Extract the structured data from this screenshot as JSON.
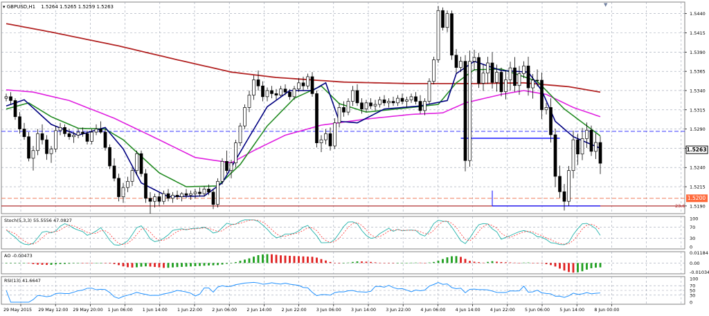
{
  "window": {
    "title": "GBPUSD,H1"
  },
  "chart_data": [
    {
      "type": "candlestick",
      "panel": "main",
      "symbol": "GBPUSD",
      "timeframe": "H1",
      "header": {
        "symbol_label": "GBPUSD,H1",
        "quote": "1.5264 1.5265 1.5259 1.5263"
      },
      "ylim": [
        1.518,
        1.5455
      ],
      "yticks": [
        "1.5440",
        "1.5415",
        "1.5390",
        "1.5365",
        "1.5340",
        "1.5315",
        "1.5290",
        "1.5265",
        "1.5240",
        "1.5215",
        "1.5190"
      ],
      "current_price_label": "1.5263",
      "current_price": 1.5263,
      "price_badge": "1.5200",
      "price_badge_value": 1.52,
      "level_text": "23.6",
      "level_value": 1.519,
      "xticks": [
        "29 May 2015",
        "29 May 12:00",
        "29 May 20:00",
        "1 Jun 06:00",
        "1 Jun 14:00",
        "1 Jun 22:00",
        "2 Jun 06:00",
        "2 Jun 14:00",
        "2 Jun 22:00",
        "3 Jun 06:00",
        "3 Jun 14:00",
        "3 Jun 22:00",
        "4 Jun 06:00",
        "4 Jun 14:00",
        "4 Jun 22:00",
        "5 Jun 06:00",
        "5 Jun 14:00",
        "8 Jun 00:00"
      ],
      "horizontal_levels": [
        {
          "value": 1.5287,
          "color": "#1a1aff",
          "style": "dashed"
        },
        {
          "value": 1.5278,
          "color": "#0000ff",
          "style": "solid",
          "from_bar": 101,
          "to_bar": 123
        },
        {
          "value": 1.52,
          "color": "#f08060",
          "style": "dashed"
        },
        {
          "value": 1.519,
          "color": "#b03030",
          "style": "solid"
        },
        {
          "value": 1.519,
          "color": "#0000ff",
          "style": "solid",
          "from_bar": 108,
          "to_bar": 132
        }
      ],
      "candles_ohlc": [
        [
          1.533,
          1.5336,
          1.5326,
          1.5332
        ],
        [
          1.5332,
          1.5338,
          1.5322,
          1.5327
        ],
        [
          1.5327,
          1.533,
          1.5302,
          1.5306
        ],
        [
          1.5306,
          1.5312,
          1.5284,
          1.529
        ],
        [
          1.529,
          1.5298,
          1.5276,
          1.528
        ],
        [
          1.528,
          1.5286,
          1.5248,
          1.5252
        ],
        [
          1.5252,
          1.5268,
          1.5236,
          1.5262
        ],
        [
          1.5262,
          1.529,
          1.5256,
          1.5284
        ],
        [
          1.5284,
          1.5296,
          1.527,
          1.5276
        ],
        [
          1.5276,
          1.5282,
          1.525,
          1.5258
        ],
        [
          1.5258,
          1.5268,
          1.5246,
          1.5264
        ],
        [
          1.5264,
          1.5294,
          1.526,
          1.5288
        ],
        [
          1.5288,
          1.5298,
          1.5282,
          1.5292
        ],
        [
          1.5292,
          1.5296,
          1.528,
          1.5284
        ],
        [
          1.5284,
          1.529,
          1.5276,
          1.528
        ],
        [
          1.528,
          1.5286,
          1.5272,
          1.5282
        ],
        [
          1.5282,
          1.529,
          1.5278,
          1.5286
        ],
        [
          1.5286,
          1.5292,
          1.528,
          1.5284
        ],
        [
          1.5284,
          1.5288,
          1.527,
          1.5274
        ],
        [
          1.5274,
          1.529,
          1.527,
          1.5286
        ],
        [
          1.5286,
          1.5296,
          1.5282,
          1.529
        ],
        [
          1.529,
          1.53,
          1.5284,
          1.5286
        ],
        [
          1.5286,
          1.529,
          1.5262,
          1.5266
        ],
        [
          1.5266,
          1.527,
          1.5238,
          1.5242
        ],
        [
          1.5242,
          1.5252,
          1.5222,
          1.5226
        ],
        [
          1.5226,
          1.5232,
          1.5196,
          1.5202
        ],
        [
          1.5202,
          1.522,
          1.5194,
          1.5214
        ],
        [
          1.5214,
          1.5228,
          1.5208,
          1.5222
        ],
        [
          1.5222,
          1.524,
          1.5216,
          1.5236
        ],
        [
          1.5236,
          1.5262,
          1.523,
          1.5258
        ],
        [
          1.5258,
          1.5262,
          1.5228,
          1.5232
        ],
        [
          1.5232,
          1.5238,
          1.5194,
          1.52
        ],
        [
          1.52,
          1.5208,
          1.518,
          1.5196
        ],
        [
          1.5196,
          1.5206,
          1.5188,
          1.5202
        ],
        [
          1.5202,
          1.5208,
          1.519,
          1.5196
        ],
        [
          1.5196,
          1.521,
          1.5192,
          1.5206
        ],
        [
          1.5206,
          1.5212,
          1.5196,
          1.52
        ],
        [
          1.52,
          1.5208,
          1.5194,
          1.5204
        ],
        [
          1.5204,
          1.521,
          1.5198,
          1.5202
        ],
        [
          1.5202,
          1.5208,
          1.5196,
          1.5206
        ],
        [
          1.5206,
          1.5212,
          1.52,
          1.5204
        ],
        [
          1.5204,
          1.521,
          1.5198,
          1.5206
        ],
        [
          1.5206,
          1.5212,
          1.52,
          1.5208
        ],
        [
          1.5208,
          1.5214,
          1.5202,
          1.5206
        ],
        [
          1.5206,
          1.5216,
          1.5202,
          1.5212
        ],
        [
          1.5212,
          1.5218,
          1.5204,
          1.5208
        ],
        [
          1.5208,
          1.5212,
          1.5186,
          1.5192
        ],
        [
          1.5192,
          1.5226,
          1.5188,
          1.5222
        ],
        [
          1.5222,
          1.5252,
          1.5218,
          1.5248
        ],
        [
          1.5248,
          1.5262,
          1.5232,
          1.5236
        ],
        [
          1.5236,
          1.525,
          1.5226,
          1.5246
        ],
        [
          1.5246,
          1.5276,
          1.524,
          1.5272
        ],
        [
          1.5272,
          1.5298,
          1.5268,
          1.5294
        ],
        [
          1.5294,
          1.5322,
          1.529,
          1.5318
        ],
        [
          1.5318,
          1.534,
          1.5312,
          1.5334
        ],
        [
          1.5334,
          1.536,
          1.5328,
          1.5354
        ],
        [
          1.5354,
          1.5366,
          1.534,
          1.5346
        ],
        [
          1.5346,
          1.5352,
          1.5326,
          1.5332
        ],
        [
          1.5332,
          1.5344,
          1.5326,
          1.534
        ],
        [
          1.534,
          1.5346,
          1.533,
          1.5336
        ],
        [
          1.5336,
          1.5342,
          1.5328,
          1.5334
        ],
        [
          1.5334,
          1.5346,
          1.5332,
          1.5342
        ],
        [
          1.5342,
          1.5348,
          1.5334,
          1.5338
        ],
        [
          1.5338,
          1.5342,
          1.5328,
          1.5332
        ],
        [
          1.5332,
          1.5346,
          1.5328,
          1.5342
        ],
        [
          1.5342,
          1.5356,
          1.5338,
          1.535
        ],
        [
          1.535,
          1.5358,
          1.534,
          1.5346
        ],
        [
          1.5346,
          1.5362,
          1.5342,
          1.5358
        ],
        [
          1.5358,
          1.5364,
          1.5332,
          1.5336
        ],
        [
          1.5336,
          1.534,
          1.5266,
          1.5272
        ],
        [
          1.5272,
          1.5282,
          1.526,
          1.5276
        ],
        [
          1.5276,
          1.529,
          1.527,
          1.5284
        ],
        [
          1.5284,
          1.5292,
          1.5262,
          1.5268
        ],
        [
          1.5268,
          1.5304,
          1.5264,
          1.5298
        ],
        [
          1.5298,
          1.5324,
          1.5292,
          1.5318
        ],
        [
          1.5318,
          1.5326,
          1.5306,
          1.5312
        ],
        [
          1.5312,
          1.533,
          1.5308,
          1.5326
        ],
        [
          1.5326,
          1.5346,
          1.532,
          1.534
        ],
        [
          1.534,
          1.5348,
          1.532,
          1.5324
        ],
        [
          1.5324,
          1.533,
          1.531,
          1.5316
        ],
        [
          1.5316,
          1.5328,
          1.5312,
          1.5324
        ],
        [
          1.5324,
          1.533,
          1.5316,
          1.532
        ],
        [
          1.532,
          1.5328,
          1.5314,
          1.5322
        ],
        [
          1.5322,
          1.5332,
          1.5318,
          1.5328
        ],
        [
          1.5328,
          1.5334,
          1.532,
          1.5324
        ],
        [
          1.5324,
          1.533,
          1.5318,
          1.5326
        ],
        [
          1.5326,
          1.5332,
          1.532,
          1.5324
        ],
        [
          1.5324,
          1.5334,
          1.532,
          1.533
        ],
        [
          1.533,
          1.5336,
          1.5322,
          1.5326
        ],
        [
          1.5326,
          1.5332,
          1.5318,
          1.5328
        ],
        [
          1.5328,
          1.5336,
          1.5324,
          1.5332
        ],
        [
          1.5332,
          1.5338,
          1.5322,
          1.5326
        ],
        [
          1.5326,
          1.5334,
          1.531,
          1.5314
        ],
        [
          1.5314,
          1.533,
          1.5308,
          1.5326
        ],
        [
          1.5326,
          1.5356,
          1.5322,
          1.5352
        ],
        [
          1.5352,
          1.5384,
          1.5348,
          1.538
        ],
        [
          1.538,
          1.545,
          1.5376,
          1.5444
        ],
        [
          1.5444,
          1.5448,
          1.5418,
          1.5422
        ],
        [
          1.5422,
          1.5444,
          1.5416,
          1.544
        ],
        [
          1.544,
          1.5444,
          1.538,
          1.5386
        ],
        [
          1.5386,
          1.5394,
          1.5362,
          1.537
        ],
        [
          1.537,
          1.5384,
          1.5364,
          1.5378
        ]
      ],
      "series": [
        {
          "name": "ma_red",
          "color": "#b22222",
          "anchors": [
            [
              0,
              1.5427
            ],
            [
              10,
              1.5416
            ],
            [
              25,
              1.5398
            ],
            [
              38,
              1.538
            ],
            [
              50,
              1.5364
            ],
            [
              60,
              1.5357
            ],
            [
              75,
              1.5351
            ],
            [
              90,
              1.5349
            ],
            [
              104,
              1.5349
            ],
            [
              115,
              1.535
            ],
            [
              125,
              1.5345
            ],
            [
              132,
              1.5338
            ]
          ]
        },
        {
          "name": "ma_magenta",
          "color": "#e020e0",
          "anchors": [
            [
              0,
              1.5341
            ],
            [
              6,
              1.5338
            ],
            [
              14,
              1.5327
            ],
            [
              24,
              1.5304
            ],
            [
              34,
              1.5276
            ],
            [
              42,
              1.5253
            ],
            [
              50,
              1.5246
            ],
            [
              55,
              1.5262
            ],
            [
              62,
              1.5282
            ],
            [
              70,
              1.5295
            ],
            [
              80,
              1.5303
            ],
            [
              90,
              1.5309
            ],
            [
              97,
              1.5311
            ],
            [
              102,
              1.5324
            ],
            [
              110,
              1.5335
            ],
            [
              115,
              1.534
            ],
            [
              120,
              1.5335
            ],
            [
              126,
              1.5318
            ],
            [
              132,
              1.5306
            ]
          ]
        },
        {
          "name": "ma_green",
          "color": "#228b22",
          "anchors": [
            [
              0,
              1.5316
            ],
            [
              5,
              1.5324
            ],
            [
              10,
              1.5306
            ],
            [
              16,
              1.5291
            ],
            [
              22,
              1.529
            ],
            [
              26,
              1.5276
            ],
            [
              34,
              1.5233
            ],
            [
              40,
              1.5215
            ],
            [
              47,
              1.5216
            ],
            [
              52,
              1.5244
            ],
            [
              58,
              1.5294
            ],
            [
              64,
              1.533
            ],
            [
              70,
              1.5346
            ],
            [
              74,
              1.5323
            ],
            [
              80,
              1.5312
            ],
            [
              90,
              1.5318
            ],
            [
              96,
              1.5322
            ],
            [
              100,
              1.535
            ],
            [
              104,
              1.5367
            ],
            [
              110,
              1.5368
            ],
            [
              118,
              1.5352
            ],
            [
              124,
              1.5316
            ],
            [
              132,
              1.5281
            ]
          ]
        },
        {
          "name": "ma_navy",
          "color": "#000080",
          "anchors": [
            [
              0,
              1.532
            ],
            [
              4,
              1.5328
            ],
            [
              10,
              1.5296
            ],
            [
              16,
              1.5282
            ],
            [
              22,
              1.5292
            ],
            [
              26,
              1.5264
            ],
            [
              30,
              1.522
            ],
            [
              36,
              1.5202
            ],
            [
              44,
              1.5203
            ],
            [
              48,
              1.522
            ],
            [
              53,
              1.527
            ],
            [
              58,
              1.5319
            ],
            [
              63,
              1.534
            ],
            [
              68,
              1.534
            ],
            [
              71,
              1.535
            ],
            [
              74,
              1.53
            ],
            [
              78,
              1.5298
            ],
            [
              84,
              1.5316
            ],
            [
              92,
              1.532
            ],
            [
              98,
              1.5327
            ],
            [
              100,
              1.5362
            ],
            [
              104,
              1.5378
            ],
            [
              110,
              1.5366
            ],
            [
              116,
              1.5364
            ],
            [
              119,
              1.534
            ],
            [
              122,
              1.53
            ],
            [
              126,
              1.528
            ],
            [
              132,
              1.5265
            ]
          ]
        }
      ]
    },
    {
      "type": "line",
      "panel": "stochastic",
      "label": "Stoch(5,3,3) 55.5556 47.0827",
      "ylim": [
        0,
        100
      ],
      "yticks": [
        "100",
        "70",
        "30",
        "0"
      ],
      "current": [
        55.5556,
        47.0827
      ]
    },
    {
      "type": "bar",
      "panel": "awesome_oscillator",
      "label": "AO -0.00473",
      "ylim": [
        -0.0125,
        0.013
      ],
      "yticks": [
        "0.01184",
        "0.00",
        "-0.01034"
      ],
      "current": -0.00473
    },
    {
      "type": "line",
      "panel": "rsi",
      "label": "RSI(13) 41.6647",
      "ylim": [
        0,
        100
      ],
      "yticks": [
        "100",
        "70",
        "50",
        "30",
        "0"
      ],
      "current": 41.6647
    }
  ]
}
